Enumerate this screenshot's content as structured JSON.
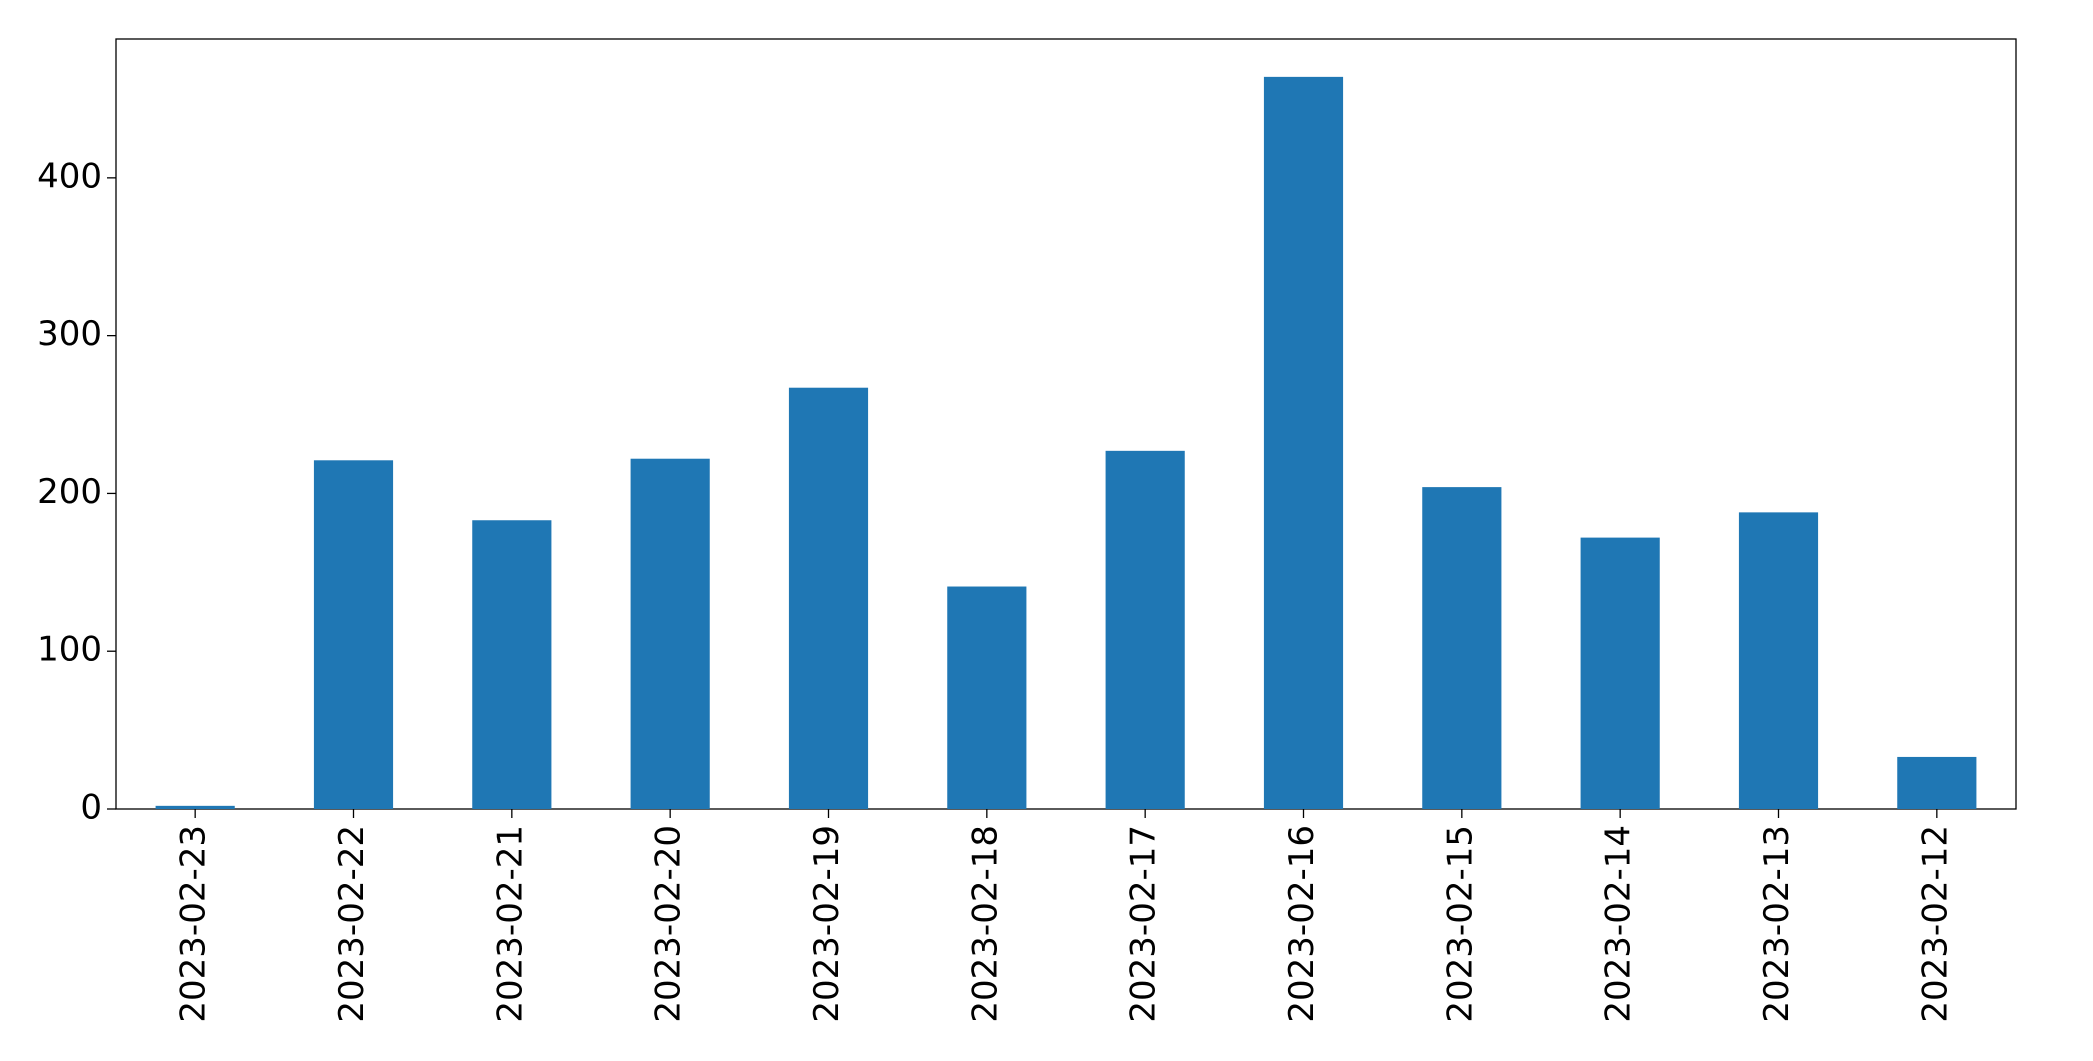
{
  "chart_data": {
    "type": "bar",
    "categories": [
      "2023-02-23",
      "2023-02-22",
      "2023-02-21",
      "2023-02-20",
      "2023-02-19",
      "2023-02-18",
      "2023-02-17",
      "2023-02-16",
      "2023-02-15",
      "2023-02-14",
      "2023-02-13",
      "2023-02-12"
    ],
    "values": [
      2,
      221,
      183,
      222,
      267,
      141,
      227,
      464,
      204,
      172,
      188,
      33
    ],
    "color": "#1f77b4",
    "ylim": [
      0,
      488
    ],
    "yticks": [
      0,
      100,
      200,
      300,
      400
    ],
    "grid": false
  }
}
